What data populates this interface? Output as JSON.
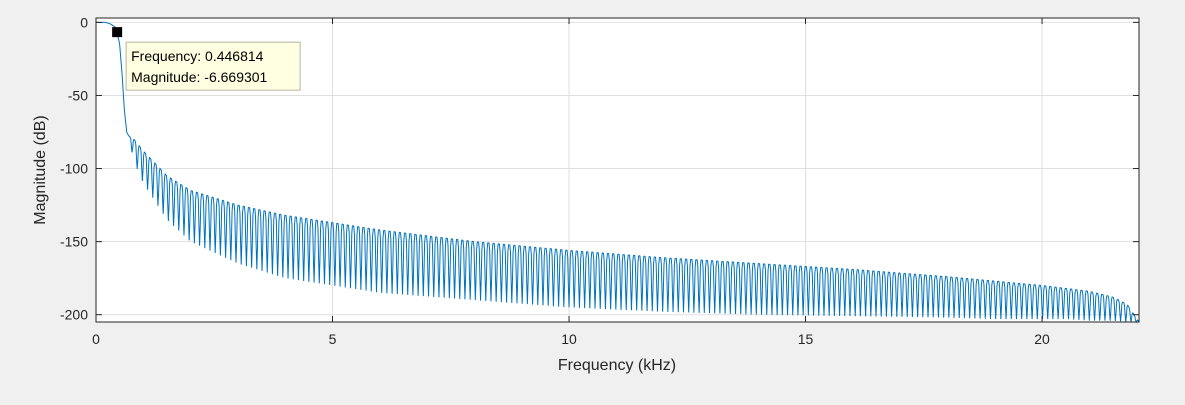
{
  "chart_data": {
    "type": "line",
    "title": "",
    "xlabel": "Frequency (kHz)",
    "ylabel": "Magnitude (dB)",
    "xlim": [
      0,
      22.05
    ],
    "ylim": [
      -205,
      3
    ],
    "grid": true,
    "xticks": [
      0,
      5,
      10,
      15,
      20
    ],
    "xtick_labels": [
      "0",
      "5",
      "10",
      "15",
      "20"
    ],
    "yticks": [
      0,
      -50,
      -100,
      -150,
      -200
    ],
    "ytick_labels": [
      "0",
      "-50",
      "-100",
      "-150",
      "-200"
    ],
    "series": [
      {
        "color": "#0072bd",
        "x": [
          0,
          0.2,
          0.3,
          0.4,
          0.446814,
          0.5,
          0.55,
          0.6,
          0.65,
          0.7,
          0.8,
          1.0,
          1.5,
          2,
          3,
          4,
          5,
          6,
          8,
          10,
          12,
          14,
          16,
          18,
          19,
          20,
          20.5,
          21,
          21.5,
          21.8,
          22.05
        ],
        "envelope_top": [
          0,
          0,
          -1,
          -3,
          -6.669301,
          -15,
          -35,
          -60,
          -75,
          -78,
          -80,
          -88,
          -105,
          -115,
          -125,
          -132,
          -137,
          -142,
          -150,
          -156,
          -161,
          -165,
          -169,
          -174,
          -177,
          -180,
          -182,
          -184,
          -188,
          -193,
          -205
        ],
        "envelope_bottom": [
          0,
          0,
          -1,
          -3,
          -6.669301,
          -15,
          -35,
          -60,
          -75,
          -80,
          -95,
          -110,
          -135,
          -150,
          -165,
          -175,
          -180,
          -185,
          -190,
          -195,
          -198,
          -200,
          -201,
          -202,
          -203,
          -203,
          -203,
          -204,
          -204,
          -205,
          -205
        ],
        "ripple_period_khz": 0.11
      }
    ],
    "data_tip": {
      "frequency_label": "Frequency: 0.446814",
      "magnitude_label": "Magnitude: -6.669301",
      "x": 0.446814,
      "y": -6.669301
    }
  }
}
